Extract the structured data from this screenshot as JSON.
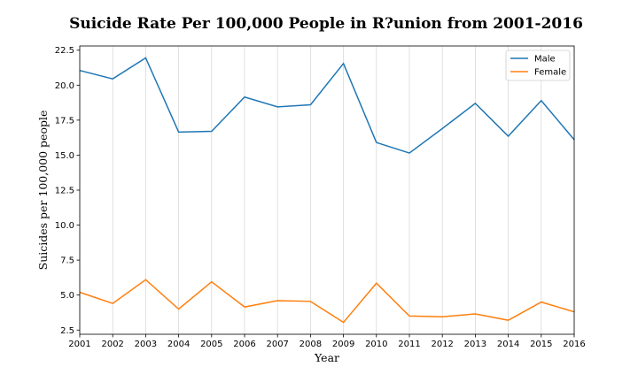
{
  "chart_data": {
    "type": "line",
    "title": "Suicide Rate Per 100,000 People in R?union from 2001-2016",
    "xlabel": "Year",
    "ylabel": "Suicides per 100,000 people",
    "x": [
      2001,
      2002,
      2003,
      2004,
      2005,
      2006,
      2007,
      2008,
      2009,
      2010,
      2011,
      2012,
      2013,
      2014,
      2015,
      2016
    ],
    "xlim": [
      2001,
      2016
    ],
    "ylim": [
      2.2,
      22.8
    ],
    "yticks": [
      "2.5",
      "5.0",
      "7.5",
      "10.0",
      "12.5",
      "15.0",
      "17.5",
      "20.0",
      "22.5"
    ],
    "xticks": [
      "2001",
      "2002",
      "2003",
      "2004",
      "2005",
      "2006",
      "2007",
      "2008",
      "2009",
      "2010",
      "2011",
      "2012",
      "2013",
      "2014",
      "2015",
      "2016"
    ],
    "grid": "vertical",
    "legend_position": "top-right",
    "series": [
      {
        "name": "Male",
        "color": "#1f77b4",
        "values": [
          21.05,
          20.45,
          21.95,
          16.65,
          16.7,
          19.15,
          18.45,
          18.6,
          21.55,
          15.9,
          15.15,
          16.9,
          18.7,
          16.35,
          18.9,
          16.1
        ]
      },
      {
        "name": "Female",
        "color": "#ff7f0e",
        "values": [
          5.2,
          4.4,
          6.1,
          4.0,
          5.95,
          4.15,
          4.6,
          4.55,
          3.05,
          5.85,
          3.5,
          3.45,
          3.65,
          3.2,
          4.5,
          3.8
        ]
      }
    ]
  }
}
